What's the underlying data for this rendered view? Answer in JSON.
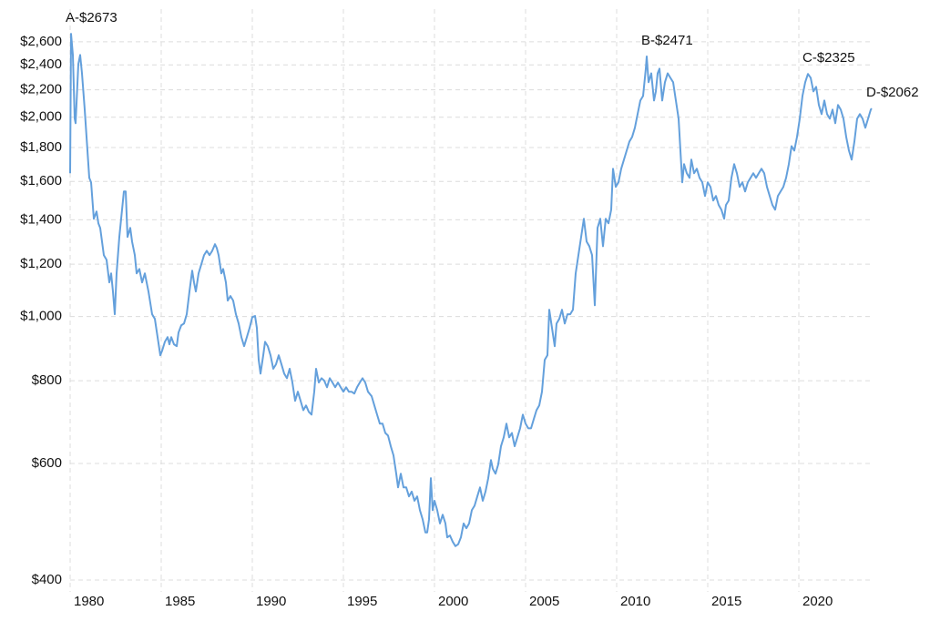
{
  "chart_data": {
    "type": "line",
    "log_y": true,
    "grid": true,
    "color": "#64a0dc",
    "xlim": [
      1980,
      2024
    ],
    "xticks": [
      1980,
      1985,
      1990,
      1995,
      2000,
      2005,
      2010,
      2015,
      2020
    ],
    "ylim": [
      400,
      2700
    ],
    "yticks": [
      {
        "value": 400,
        "label": "$400"
      },
      {
        "value": 600,
        "label": "$600"
      },
      {
        "value": 800,
        "label": "$800"
      },
      {
        "value": 1000,
        "label": "$1,000"
      },
      {
        "value": 1200,
        "label": "$1,200"
      },
      {
        "value": 1400,
        "label": "$1,400"
      },
      {
        "value": 1600,
        "label": "$1,600"
      },
      {
        "value": 1800,
        "label": "$1,800"
      },
      {
        "value": 2000,
        "label": "$2,000"
      },
      {
        "value": 2200,
        "label": "$2,200"
      },
      {
        "value": 2400,
        "label": "$2,400"
      },
      {
        "value": 2600,
        "label": "$2,600"
      }
    ],
    "annotations": [
      {
        "text": "A-$2673",
        "x": 1980.05,
        "y": 2673
      },
      {
        "text": "B-$2471",
        "x": 2011.65,
        "y": 2471
      },
      {
        "text": "C-$2325",
        "x": 2020.5,
        "y": 2325
      },
      {
        "text": "D-$2062",
        "x": 2024.0,
        "y": 2062
      }
    ],
    "x": [
      1980.0,
      1980.05,
      1980.15,
      1980.25,
      1980.3,
      1980.45,
      1980.55,
      1980.65,
      1980.8,
      1980.9,
      1981.05,
      1981.15,
      1981.3,
      1981.45,
      1981.55,
      1981.65,
      1981.85,
      1982.0,
      1982.15,
      1982.25,
      1982.35,
      1982.45,
      1982.55,
      1982.7,
      1982.8,
      1982.95,
      1983.05,
      1983.15,
      1983.3,
      1983.4,
      1983.55,
      1983.65,
      1983.8,
      1983.95,
      1984.1,
      1984.3,
      1984.5,
      1984.65,
      1984.8,
      1984.95,
      1985.05,
      1985.2,
      1985.35,
      1985.45,
      1985.55,
      1985.7,
      1985.85,
      1985.95,
      1986.1,
      1986.25,
      1986.4,
      1986.55,
      1986.7,
      1986.8,
      1986.9,
      1987.05,
      1987.2,
      1987.35,
      1987.5,
      1987.65,
      1987.8,
      1987.95,
      1988.05,
      1988.15,
      1988.3,
      1988.4,
      1988.55,
      1988.65,
      1988.8,
      1988.95,
      1989.1,
      1989.25,
      1989.4,
      1989.55,
      1989.7,
      1989.85,
      1990.0,
      1990.15,
      1990.25,
      1990.35,
      1990.45,
      1990.6,
      1990.7,
      1990.85,
      1991.0,
      1991.15,
      1991.3,
      1991.45,
      1991.6,
      1991.75,
      1991.9,
      1992.05,
      1992.2,
      1992.35,
      1992.5,
      1992.65,
      1992.8,
      1992.95,
      1993.1,
      1993.25,
      1993.4,
      1993.5,
      1993.65,
      1993.8,
      1993.95,
      1994.1,
      1994.25,
      1994.4,
      1994.55,
      1994.7,
      1994.85,
      1995.0,
      1995.15,
      1995.3,
      1995.45,
      1995.6,
      1995.75,
      1995.9,
      1996.05,
      1996.2,
      1996.35,
      1996.55,
      1996.7,
      1996.85,
      1997.0,
      1997.15,
      1997.3,
      1997.45,
      1997.6,
      1997.75,
      1997.9,
      1998.0,
      1998.15,
      1998.3,
      1998.45,
      1998.6,
      1998.75,
      1998.9,
      1999.05,
      1999.2,
      1999.35,
      1999.5,
      1999.6,
      1999.7,
      1999.8,
      1999.9,
      2000.0,
      2000.15,
      2000.3,
      2000.45,
      2000.6,
      2000.7,
      2000.85,
      2001.0,
      2001.15,
      2001.3,
      2001.45,
      2001.6,
      2001.75,
      2001.9,
      2002.05,
      2002.2,
      2002.35,
      2002.5,
      2002.65,
      2002.8,
      2002.95,
      2003.1,
      2003.2,
      2003.35,
      2003.5,
      2003.65,
      2003.8,
      2003.95,
      2004.1,
      2004.25,
      2004.4,
      2004.55,
      2004.7,
      2004.85,
      2005.0,
      2005.15,
      2005.3,
      2005.45,
      2005.6,
      2005.75,
      2005.9,
      2006.05,
      2006.2,
      2006.3,
      2006.45,
      2006.6,
      2006.7,
      2006.85,
      2007.0,
      2007.15,
      2007.3,
      2007.45,
      2007.6,
      2007.75,
      2007.9,
      2008.05,
      2008.2,
      2008.35,
      2008.5,
      2008.65,
      2008.8,
      2008.95,
      2009.1,
      2009.25,
      2009.4,
      2009.55,
      2009.7,
      2009.8,
      2009.95,
      2010.1,
      2010.25,
      2010.4,
      2010.55,
      2010.7,
      2010.85,
      2011.0,
      2011.15,
      2011.3,
      2011.45,
      2011.6,
      2011.65,
      2011.75,
      2011.9,
      2012.05,
      2012.15,
      2012.25,
      2012.35,
      2012.5,
      2012.65,
      2012.8,
      2012.95,
      2013.1,
      2013.25,
      2013.4,
      2013.5,
      2013.6,
      2013.7,
      2013.85,
      2014.0,
      2014.1,
      2014.25,
      2014.4,
      2014.55,
      2014.7,
      2014.85,
      2015.0,
      2015.15,
      2015.3,
      2015.45,
      2015.6,
      2015.75,
      2015.9,
      2016.0,
      2016.15,
      2016.3,
      2016.45,
      2016.6,
      2016.75,
      2016.9,
      2017.05,
      2017.2,
      2017.35,
      2017.5,
      2017.65,
      2017.8,
      2017.95,
      2018.1,
      2018.25,
      2018.4,
      2018.55,
      2018.7,
      2018.85,
      2019.0,
      2019.15,
      2019.3,
      2019.45,
      2019.6,
      2019.75,
      2019.9,
      2020.05,
      2020.2,
      2020.35,
      2020.5,
      2020.65,
      2020.8,
      2020.95,
      2021.1,
      2021.25,
      2021.4,
      2021.55,
      2021.7,
      2021.85,
      2022.0,
      2022.15,
      2022.3,
      2022.45,
      2022.6,
      2022.75,
      2022.9,
      2023.05,
      2023.2,
      2023.35,
      2023.5,
      2023.65,
      2023.8,
      2023.95,
      2024.0
    ],
    "values": [
      1646,
      2673,
      2484,
      1990,
      1959,
      2406,
      2484,
      2330,
      2054,
      1868,
      1620,
      1595,
      1405,
      1441,
      1383,
      1361,
      1238,
      1218,
      1126,
      1162,
      1091,
      1008,
      1162,
      1319,
      1405,
      1545,
      1545,
      1319,
      1361,
      1298,
      1238,
      1162,
      1180,
      1126,
      1162,
      1091,
      1008,
      992,
      931,
      874,
      888,
      916,
      931,
      908,
      931,
      908,
      902,
      946,
      970,
      976,
      1008,
      1091,
      1173,
      1126,
      1091,
      1162,
      1199,
      1238,
      1257,
      1238,
      1257,
      1286,
      1269,
      1238,
      1162,
      1180,
      1126,
      1057,
      1074,
      1057,
      1008,
      976,
      931,
      902,
      931,
      961,
      998,
      1002,
      961,
      860,
      820,
      874,
      916,
      902,
      874,
      834,
      847,
      874,
      847,
      820,
      807,
      834,
      795,
      746,
      770,
      746,
      722,
      734,
      718,
      711,
      770,
      834,
      795,
      807,
      800,
      782,
      807,
      795,
      782,
      795,
      782,
      770,
      782,
      770,
      770,
      765,
      782,
      795,
      807,
      795,
      770,
      758,
      734,
      711,
      689,
      689,
      667,
      661,
      637,
      617,
      579,
      552,
      579,
      552,
      552,
      535,
      544,
      527,
      535,
      510,
      494,
      472,
      472,
      494,
      570,
      510,
      527,
      510,
      487,
      502,
      487,
      464,
      467,
      457,
      450,
      453,
      464,
      487,
      479,
      487,
      510,
      518,
      535,
      552,
      527,
      544,
      570,
      607,
      589,
      579,
      598,
      637,
      657,
      689,
      657,
      667,
      637,
      657,
      678,
      711,
      689,
      678,
      678,
      700,
      722,
      734,
      770,
      860,
      874,
      1024,
      961,
      902,
      976,
      992,
      1024,
      976,
      1008,
      1008,
      1024,
      1162,
      1238,
      1319,
      1405,
      1298,
      1277,
      1238,
      1040,
      1361,
      1405,
      1277,
      1405,
      1383,
      1450,
      1672,
      1570,
      1595,
      1672,
      1726,
      1781,
      1838,
      1868,
      1928,
      2022,
      2120,
      2154,
      2368,
      2471,
      2259,
      2330,
      2120,
      2188,
      2330,
      2368,
      2120,
      2259,
      2330,
      2294,
      2259,
      2120,
      1990,
      1781,
      1595,
      1699,
      1646,
      1620,
      1726,
      1646,
      1672,
      1620,
      1595,
      1521,
      1595,
      1570,
      1497,
      1521,
      1474,
      1450,
      1405,
      1474,
      1497,
      1620,
      1699,
      1646,
      1570,
      1595,
      1545,
      1595,
      1620,
      1646,
      1620,
      1646,
      1672,
      1646,
      1570,
      1521,
      1474,
      1450,
      1521,
      1545,
      1570,
      1620,
      1699,
      1809,
      1781,
      1868,
      1990,
      2154,
      2259,
      2325,
      2294,
      2188,
      2223,
      2087,
      2022,
      2120,
      2022,
      1990,
      2054,
      1959,
      2087,
      2054,
      1990,
      1868,
      1781,
      1726,
      1838,
      1990,
      2022,
      1990,
      1928,
      1990,
      2054,
      2062
    ]
  }
}
